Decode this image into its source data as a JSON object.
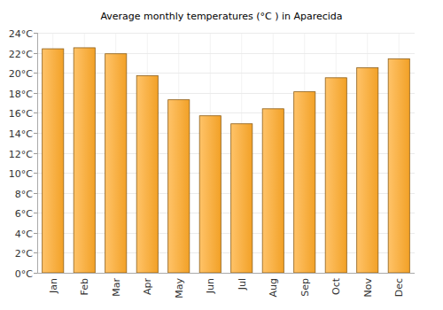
{
  "chart_data": {
    "type": "bar",
    "title": "Average monthly temperatures (°C ) in Aparecida",
    "categories": [
      "Jan",
      "Feb",
      "Mar",
      "Apr",
      "May",
      "Jun",
      "Jul",
      "Aug",
      "Sep",
      "Oct",
      "Nov",
      "Dec"
    ],
    "values": [
      22.4,
      22.5,
      21.9,
      19.7,
      17.3,
      15.7,
      14.9,
      16.4,
      18.1,
      19.5,
      20.5,
      21.4
    ],
    "color": "#ffa929",
    "ylim": [
      0,
      24
    ],
    "yticks": [
      {
        "value": 0,
        "label": "0°C"
      },
      {
        "value": 2,
        "label": "2°C"
      },
      {
        "value": 4,
        "label": "4°C"
      },
      {
        "value": 6,
        "label": "6°C"
      },
      {
        "value": 8,
        "label": "8°C"
      },
      {
        "value": 10,
        "label": "10°C"
      },
      {
        "value": 12,
        "label": "12°C"
      },
      {
        "value": 14,
        "label": "14°C"
      },
      {
        "value": 16,
        "label": "16°C"
      },
      {
        "value": 18,
        "label": "18°C"
      },
      {
        "value": 20,
        "label": "20°C"
      },
      {
        "value": 22,
        "label": "22°C"
      },
      {
        "value": 24,
        "label": "24°C"
      }
    ],
    "grid": true
  }
}
